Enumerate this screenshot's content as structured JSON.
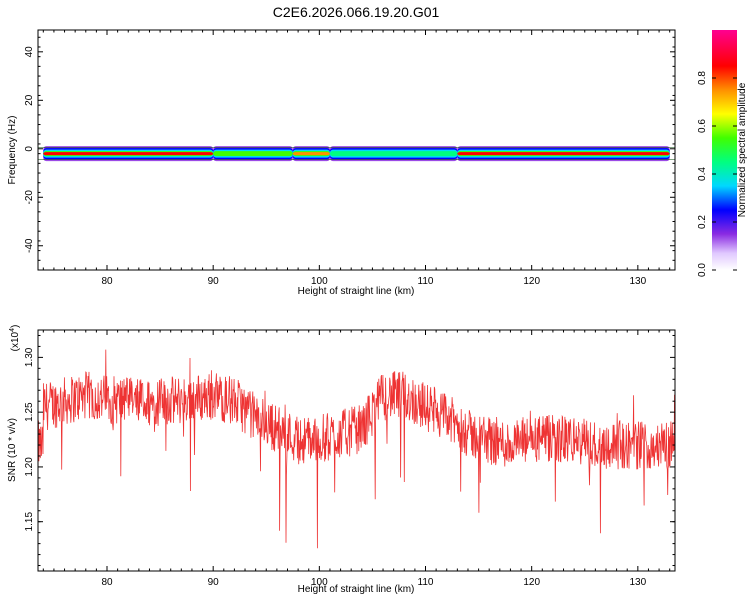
{
  "figure_title": "C2E6.2026.066.19.20.G01",
  "chart_data": [
    {
      "type": "heatmap",
      "xlabel": "Height of straight line (km)",
      "ylabel": "Frequency (Hz)",
      "xlim": [
        73.5,
        133.5
      ],
      "ylim": [
        -50,
        49
      ],
      "x_ticks": [
        80,
        90,
        100,
        110,
        120,
        130
      ],
      "y_ticks": [
        -40,
        -20,
        0,
        20,
        40
      ],
      "grid": false,
      "band_center_hz": -2,
      "colorbar": {
        "label": "Normalized spectral amplitude",
        "range": [
          0.0,
          1.0
        ],
        "ticks": [
          0.0,
          0.2,
          0.4,
          0.6,
          0.8
        ]
      },
      "band_segments": [
        {
          "x": [
            74.0,
            90.0
          ],
          "peak_amplitude": 0.9
        },
        {
          "x": [
            90.0,
            97.5
          ],
          "peak_amplitude": 0.6
        },
        {
          "x": [
            97.5,
            101.0
          ],
          "peak_amplitude": 0.8
        },
        {
          "x": [
            101.0,
            113.0
          ],
          "peak_amplitude": 0.45
        },
        {
          "x": [
            113.0,
            133.0
          ],
          "peak_amplitude": 0.85
        }
      ]
    },
    {
      "type": "line",
      "xlabel": "Height of straight line (km)",
      "ylabel": "SNR (10 * v/v)",
      "y_scale_label": "(x10",
      "y_scale_exp": "4",
      "xlim": [
        73.5,
        133.5
      ],
      "ylim": [
        1.105,
        1.325
      ],
      "x_ticks": [
        80,
        90,
        100,
        110,
        120,
        130
      ],
      "y_ticks": [
        1.15,
        1.2,
        1.25,
        1.3
      ],
      "grid": false,
      "series_color": "#ee3333",
      "series": [
        {
          "x": [
            74,
            76,
            78,
            80,
            82,
            84,
            86,
            88,
            90,
            92,
            94,
            96,
            98,
            100,
            102,
            104,
            106,
            108,
            110,
            112,
            114,
            116,
            118,
            120,
            122,
            124,
            126,
            128,
            130,
            132,
            133.5
          ],
          "y": [
            1.255,
            1.26,
            1.265,
            1.262,
            1.26,
            1.258,
            1.26,
            1.262,
            1.265,
            1.26,
            1.245,
            1.235,
            1.225,
            1.225,
            1.23,
            1.235,
            1.265,
            1.265,
            1.255,
            1.245,
            1.23,
            1.225,
            1.22,
            1.225,
            1.225,
            1.225,
            1.22,
            1.22,
            1.22,
            1.22,
            1.22
          ]
        }
      ]
    }
  ]
}
